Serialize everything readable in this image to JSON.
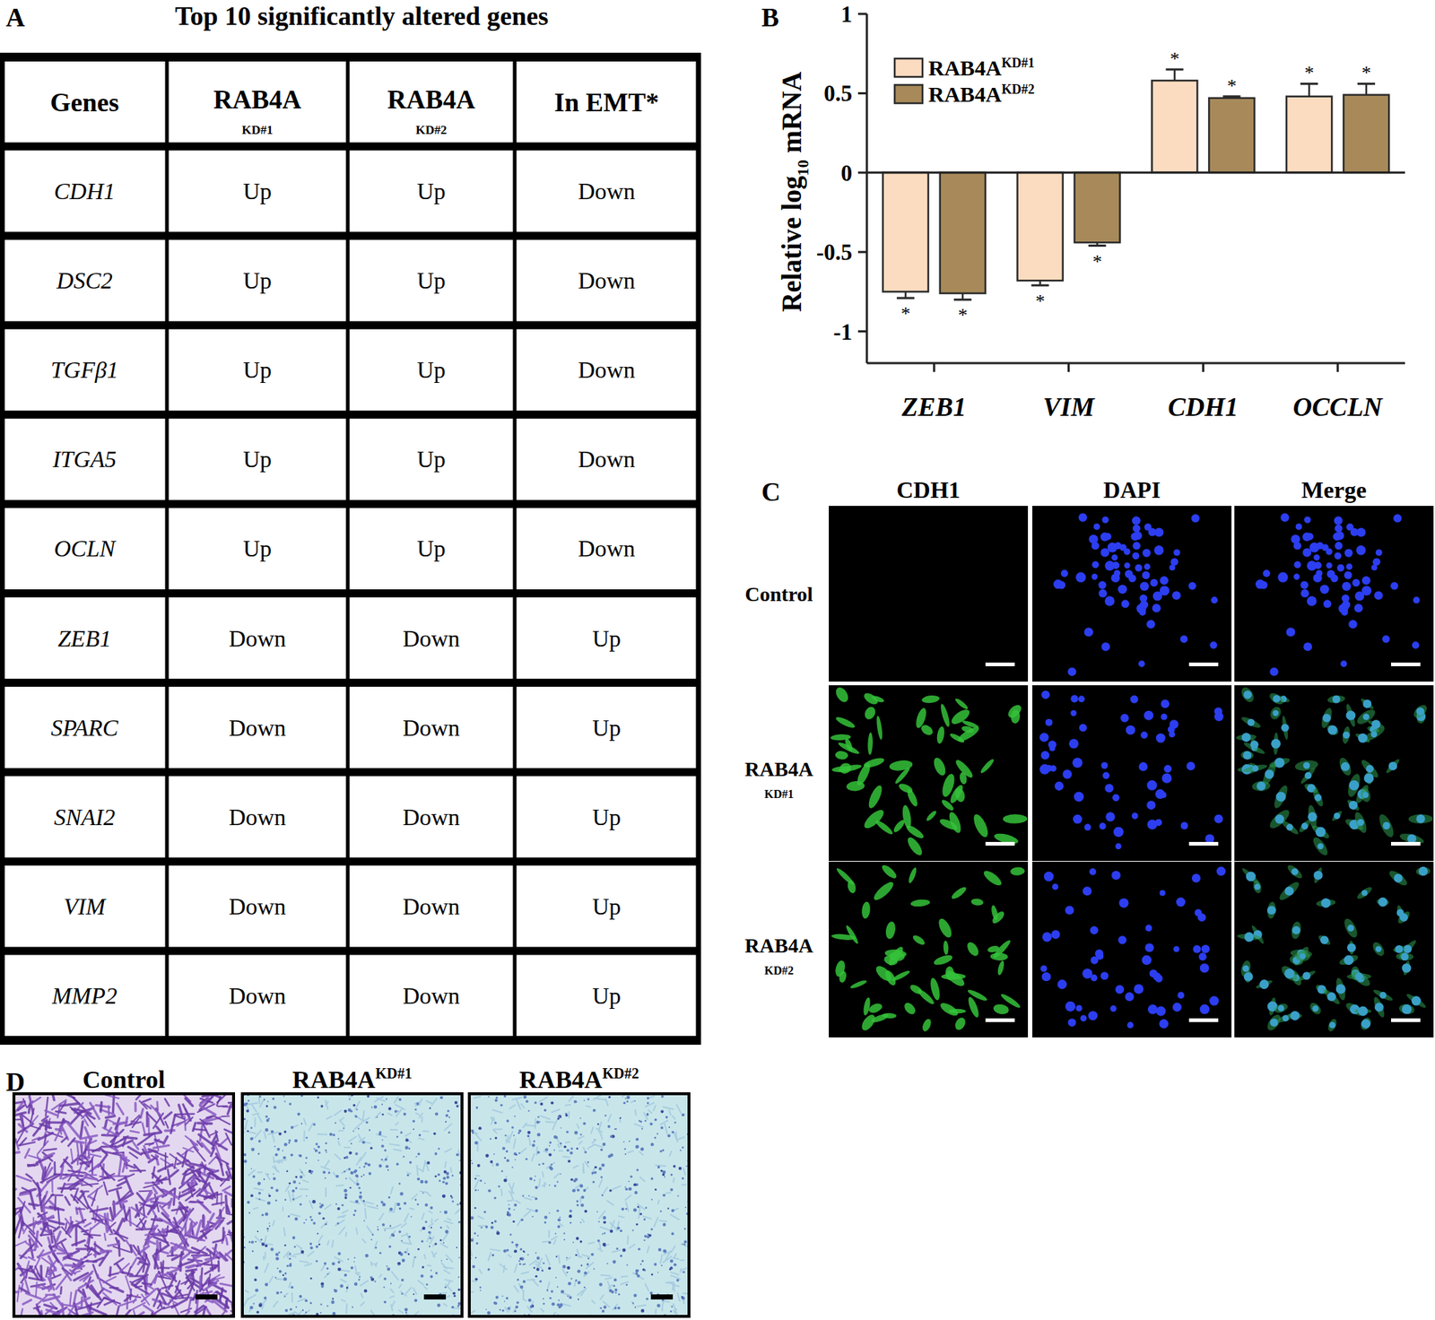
{
  "panel_a": {
    "label": "A",
    "title": "Top 10 significantly altered genes",
    "table": {
      "header": [
        {
          "text": "Genes"
        },
        {
          "text": "RAB4A",
          "sub": "KD#1"
        },
        {
          "text": "RAB4A",
          "sub": "KD#2"
        },
        {
          "text": "In EMT*"
        }
      ],
      "rows": [
        [
          "CDH1",
          "Up",
          "Up",
          "Down"
        ],
        [
          "DSC2",
          "Up",
          "Up",
          "Down"
        ],
        [
          "TGFβ1",
          "Up",
          "Up",
          "Down"
        ],
        [
          "ITGA5",
          "Up",
          "Up",
          "Down"
        ],
        [
          "OCLN",
          "Up",
          "Up",
          "Down"
        ],
        [
          "ZEB1",
          "Down",
          "Down",
          "Up"
        ],
        [
          "SPARC",
          "Down",
          "Down",
          "Up"
        ],
        [
          "SNAI2",
          "Down",
          "Down",
          "Up"
        ],
        [
          "VIM",
          "Down",
          "Down",
          "Up"
        ],
        [
          "MMP2",
          "Down",
          "Down",
          "Up"
        ]
      ]
    }
  },
  "chart_data": {
    "type": "bar",
    "label": "B",
    "y_label": {
      "text": "Relative log",
      "subscript": "10",
      "suffix": " mRNA"
    },
    "categories": [
      "ZEB1",
      "VIM",
      "CDH1",
      "OCCLN"
    ],
    "series": [
      {
        "name": "RAB4A",
        "superscript": "KD#1",
        "color": "#fbdcc0",
        "values": [
          -0.75,
          -0.68,
          0.58,
          0.48
        ],
        "errors": [
          0.04,
          0.03,
          0.07,
          0.08
        ],
        "significance": [
          "*",
          "*",
          "*",
          "*"
        ]
      },
      {
        "name": "RAB4A",
        "superscript": "KD#2",
        "color": "#a88a5a",
        "values": [
          -0.76,
          -0.44,
          0.47,
          0.49
        ],
        "errors": [
          0.04,
          0.02,
          0.01,
          0.07
        ],
        "significance": [
          "*",
          "*",
          "*",
          "*"
        ]
      }
    ],
    "ylim": [
      -1.2,
      1
    ],
    "yticks": [
      -1,
      -0.5,
      0,
      0.5,
      1
    ],
    "legend": "upper left"
  },
  "panel_c": {
    "label": "C",
    "columns": [
      "CDH1",
      "DAPI",
      "Merge"
    ],
    "rows": [
      {
        "name": "Control",
        "stained": false
      },
      {
        "name": "RAB4A",
        "sub": "KD#1",
        "stained": true
      },
      {
        "name": "RAB4A",
        "sub": "KD#2",
        "stained": true
      }
    ]
  },
  "panel_d": {
    "label": "D",
    "images": [
      {
        "title": "Control",
        "invaded": true
      },
      {
        "title": "RAB4A",
        "superscript": "KD#1",
        "invaded": false
      },
      {
        "title": "RAB4A",
        "superscript": "KD#2",
        "invaded": false
      }
    ]
  }
}
